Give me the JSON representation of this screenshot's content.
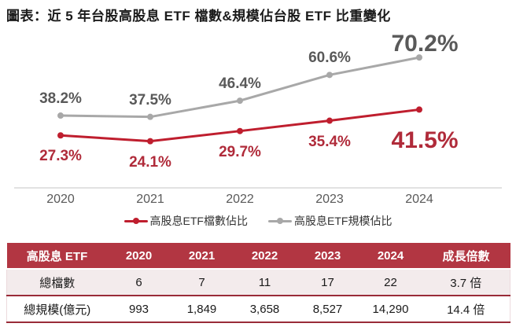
{
  "title": "圖表：近 5 年台股高股息 ETF 檔數&規模佔台股 ETF 比重變化",
  "chart_data": {
    "type": "line",
    "title": "近 5 年台股高股息 ETF 檔數&規模佔台股 ETF 比重變化",
    "categories": [
      "2020",
      "2021",
      "2022",
      "2023",
      "2024"
    ],
    "series": [
      {
        "name": "高股息ETF檔數佔比",
        "values": [
          27.3,
          24.1,
          29.7,
          35.4,
          41.5
        ],
        "line_color": "#bf1e2e",
        "label_color": "#b02b3a",
        "label_position": "below"
      },
      {
        "name": "高股息ETF規模佔比",
        "values": [
          38.2,
          37.5,
          46.4,
          60.6,
          70.2
        ],
        "line_color": "#a8a8a8",
        "label_color": "#595959",
        "label_position": "above"
      }
    ],
    "value_suffix": "%",
    "xlabel": "",
    "ylabel": "",
    "ylim": [
      0,
      100
    ],
    "grid": false,
    "legend_position": "bottom",
    "axis_line_color": "#d9d9d9",
    "highlight_last_point": true
  },
  "table": {
    "headers": [
      "高股息 ETF",
      "2020",
      "2021",
      "2022",
      "2023",
      "2024",
      "成長倍數"
    ],
    "rows": [
      [
        "總檔數",
        "6",
        "7",
        "11",
        "17",
        "22",
        "3.7 倍"
      ],
      [
        "總規模(億元)",
        "993",
        "1,849",
        "3,658",
        "8,527",
        "14,290",
        "14.4 倍"
      ]
    ],
    "header_bg": "#b23642",
    "header_text_color": "#ffffff",
    "first_row_bg": "#f3ebec",
    "second_row_bg": "#ffffff",
    "separator_color": "#992b38"
  }
}
